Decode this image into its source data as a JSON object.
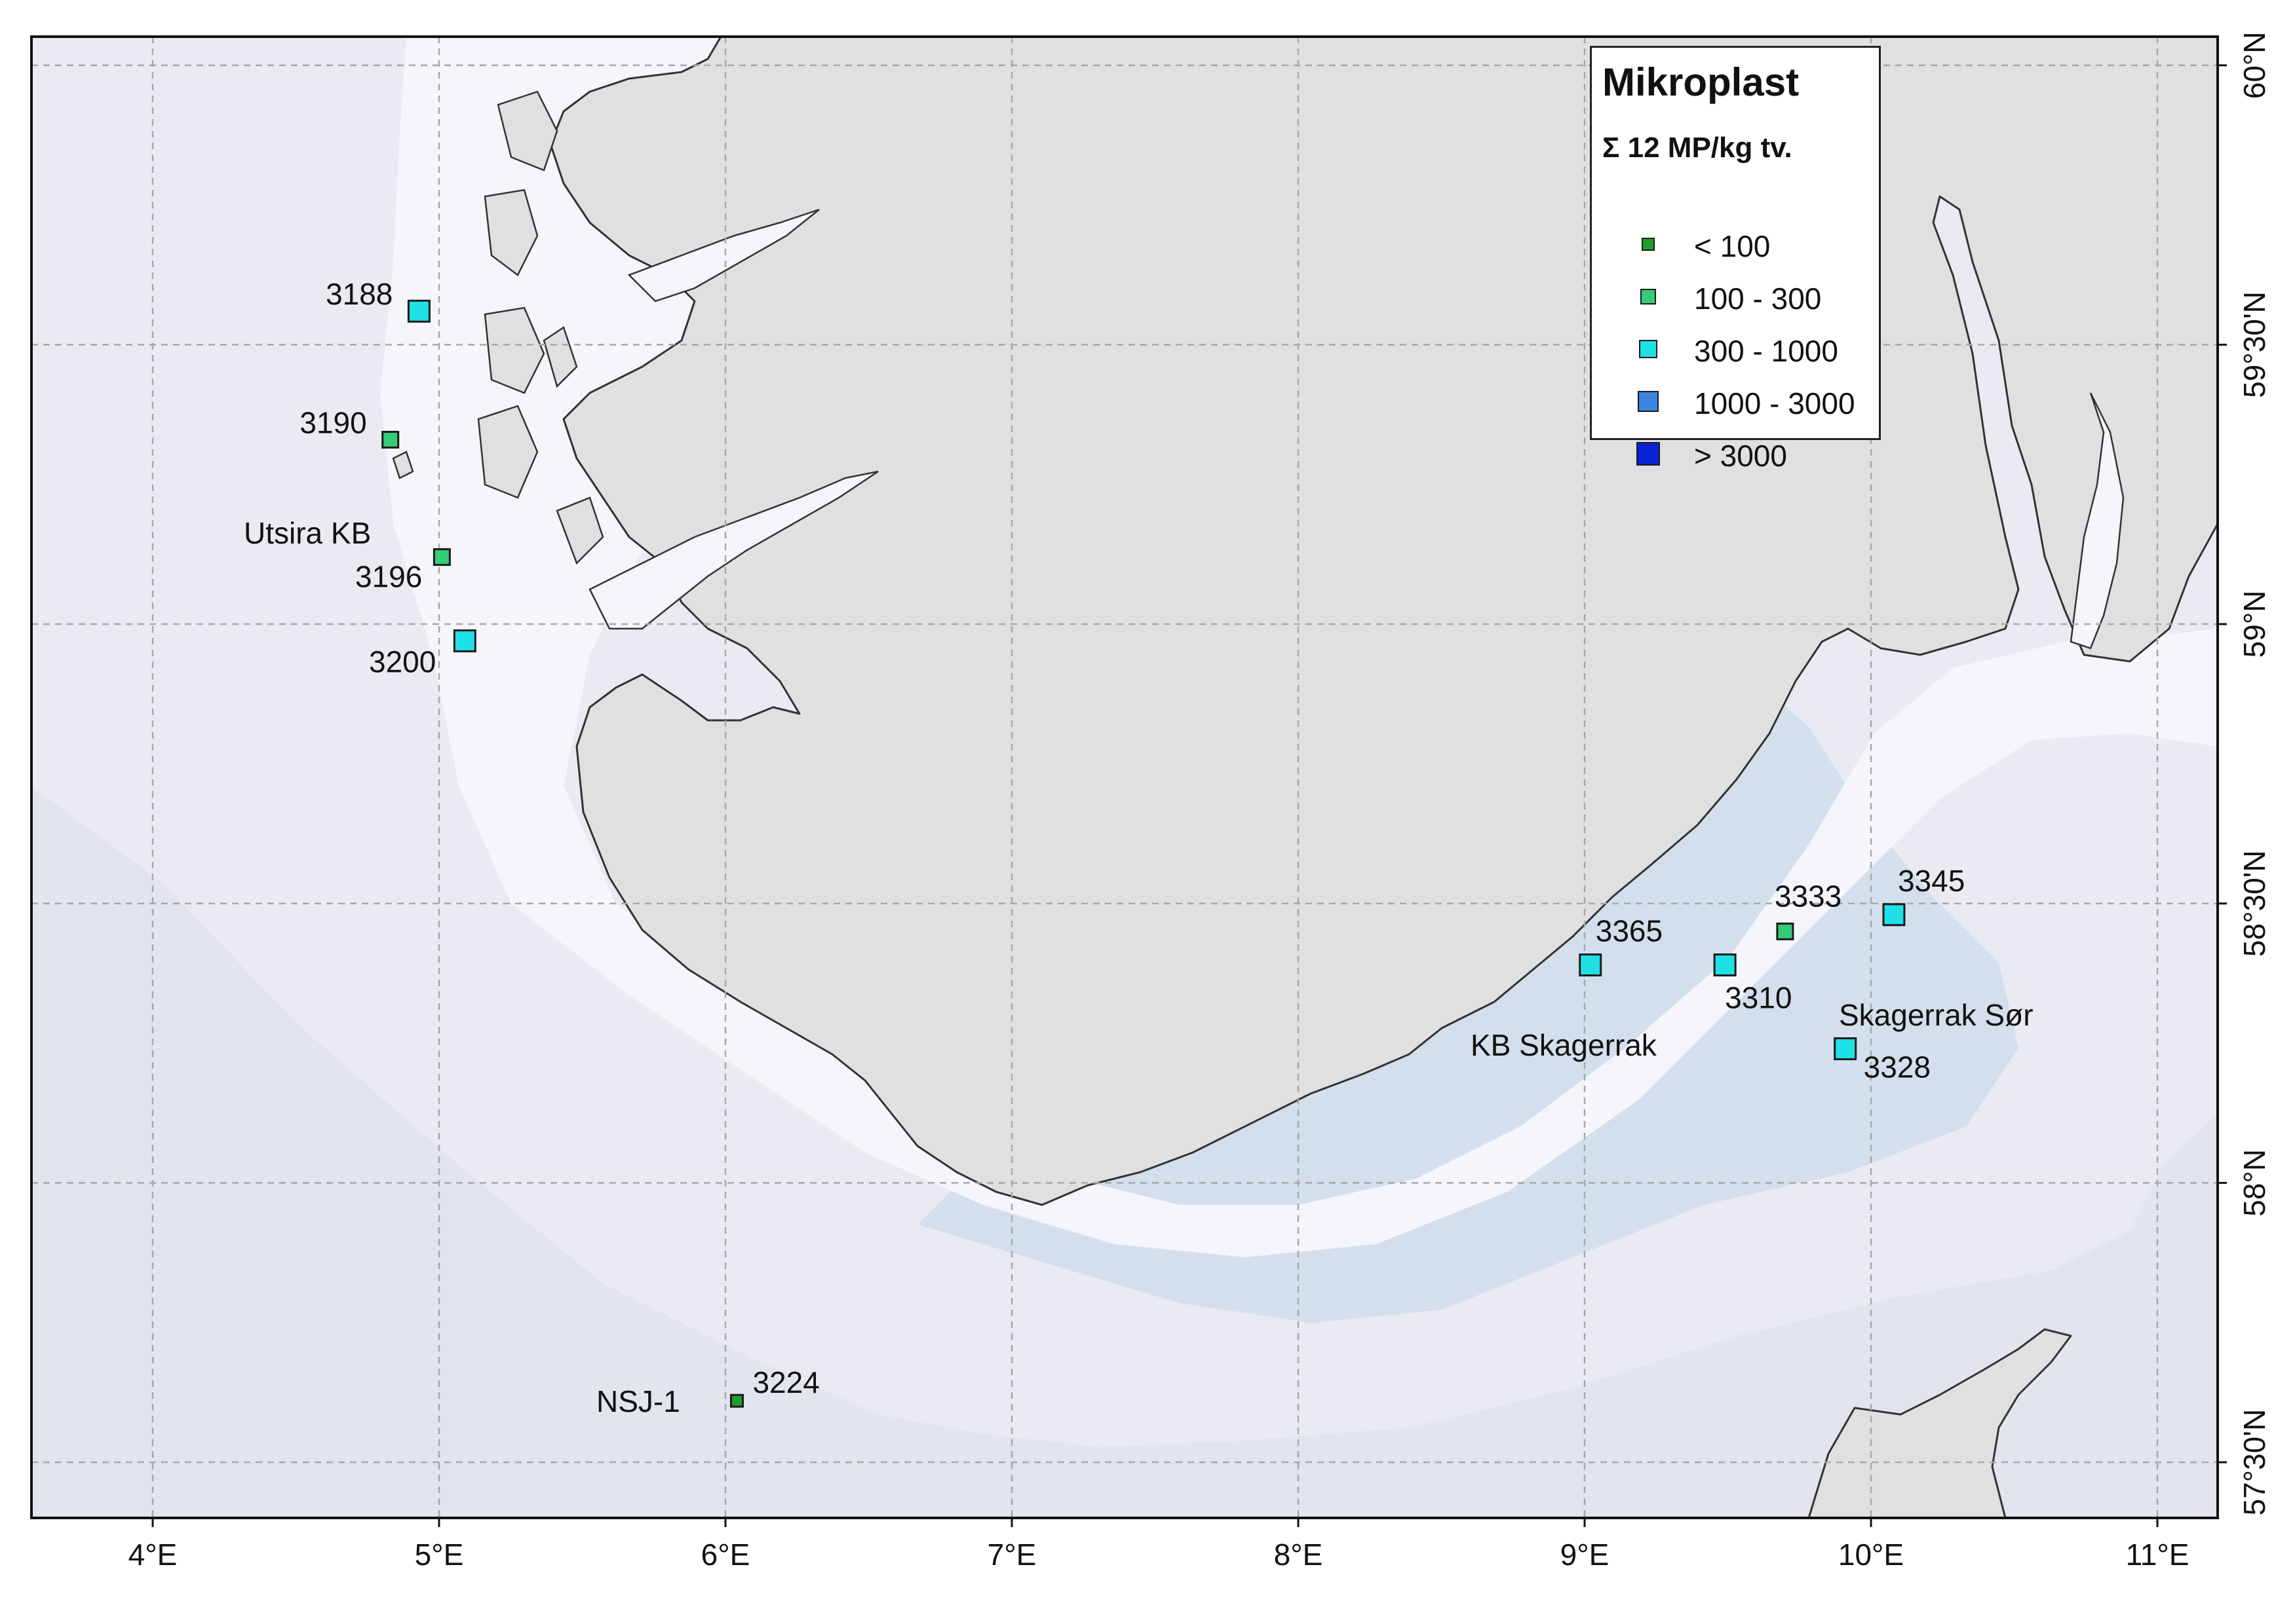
{
  "legend": {
    "title": "Mikroplast",
    "subtitle": "Σ 12 MP/kg tv.",
    "classes": [
      {
        "label": "< 100",
        "color": "#1f9e2c"
      },
      {
        "label": "100 - 300",
        "color": "#33cc77"
      },
      {
        "label": "300 - 1000",
        "color": "#1ee0e6"
      },
      {
        "label": "1000 - 3000",
        "color": "#3a86e0"
      },
      {
        "label": "> 3000",
        "color": "#0a22d6"
      }
    ]
  },
  "longitude_labels": [
    "4°E",
    "5°E",
    "6°E",
    "7°E",
    "8°E",
    "9°E",
    "10°E",
    "11°E"
  ],
  "latitude_labels": [
    "60°N",
    "59°30'N",
    "59°N",
    "58°30'N",
    "58°N",
    "57°30'N"
  ],
  "stations": [
    {
      "id": "3188",
      "lon": 4.93,
      "lat": 59.56,
      "class_index": 2
    },
    {
      "id": "3190",
      "lon": 4.83,
      "lat": 59.33,
      "class_index": 1
    },
    {
      "id": "3196",
      "lon": 5.01,
      "lat": 59.12,
      "class_index": 1
    },
    {
      "id": "3200",
      "lon": 5.09,
      "lat": 58.97,
      "class_index": 2
    },
    {
      "id": "3224",
      "lon": 6.04,
      "lat": 57.61,
      "class_index": 0
    },
    {
      "id": "3365",
      "lon": 9.02,
      "lat": 58.39,
      "class_index": 2
    },
    {
      "id": "3310",
      "lon": 9.49,
      "lat": 58.39,
      "class_index": 2
    },
    {
      "id": "3333",
      "lon": 9.7,
      "lat": 58.45,
      "class_index": 1
    },
    {
      "id": "3345",
      "lon": 10.08,
      "lat": 58.48,
      "class_index": 2
    },
    {
      "id": "3328",
      "lon": 9.91,
      "lat": 58.24,
      "class_index": 2
    }
  ],
  "area_labels": [
    "Utsira KB",
    "NSJ-1",
    "KB Skagerrak",
    "Skagerrak Sør"
  ],
  "colors": {
    "land": "#e0e0e0",
    "coast_outline": "#333333",
    "sea_shallow": "#f5f5fb",
    "sea_mid": "#e8e8f2",
    "sea_deep": "#d4e0ee",
    "graticule": "#a8a8a8",
    "frame": "#111111"
  }
}
